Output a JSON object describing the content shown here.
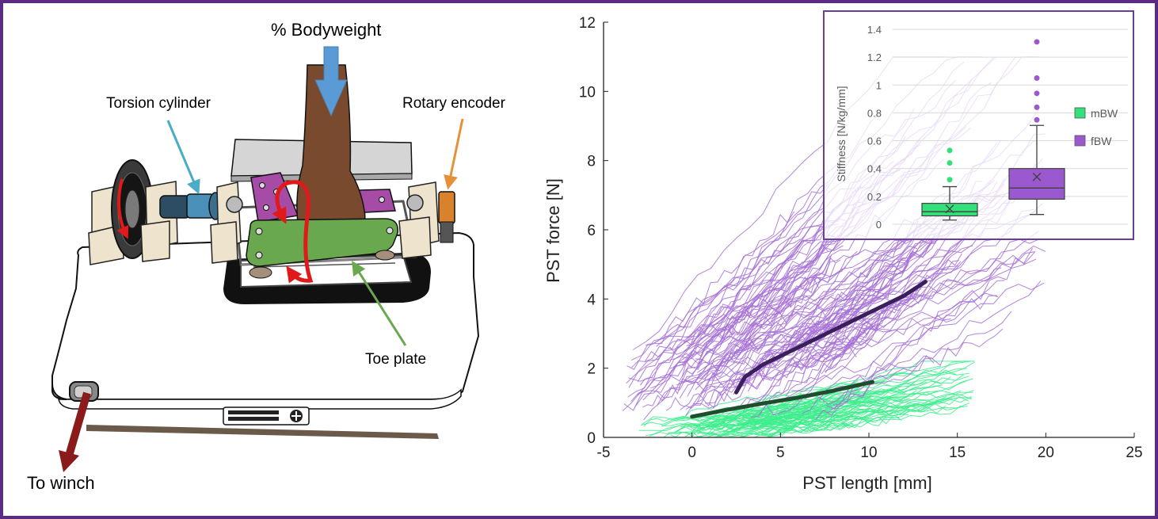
{
  "apparatus": {
    "labels": {
      "bodyweight": "% Bodyweight",
      "torsion_cylinder": "Torsion cylinder",
      "rotary_encoder": "Rotary encoder",
      "toe_plate": "Toe plate",
      "to_winch": "To winch"
    },
    "colors": {
      "bodyweight_arrow": "#5b9bd5",
      "torsion_pointer": "#4bacc6",
      "encoder_pointer": "#e69138",
      "toe_pointer": "#6aa84f",
      "winch_arrow": "#a61c1c",
      "rotation_arrow": "#e01a1a",
      "toe_plate": "#6aa84f",
      "clamp_plate": "#a64ca6"
    }
  },
  "chart_data": [
    {
      "type": "line",
      "title": "",
      "xlabel": "PST length [mm]",
      "ylabel": "PST force [N]",
      "xlim": [
        -5,
        25
      ],
      "ylim": [
        0,
        12
      ],
      "xticks": [
        -5,
        0,
        5,
        10,
        15,
        20,
        25
      ],
      "yticks": [
        0,
        2,
        4,
        6,
        8,
        10,
        12
      ],
      "grid": false,
      "series": [
        {
          "group": "mBW",
          "kind": "individual traces",
          "color": "#3ded8c",
          "approx_count": 80,
          "x_range": [
            -3,
            16
          ],
          "y_range": [
            0,
            2.2
          ]
        },
        {
          "group": "fBW",
          "kind": "individual traces",
          "color": "#a46fd6",
          "approx_count": 120,
          "x_range": [
            -4,
            20
          ],
          "y_range": [
            0.6,
            11
          ]
        },
        {
          "group": "mBW",
          "kind": "mean curve",
          "color": "#1f4d2e",
          "x": [
            0,
            2,
            4,
            6,
            8,
            10.2
          ],
          "y": [
            0.6,
            0.8,
            0.98,
            1.15,
            1.35,
            1.6
          ]
        },
        {
          "group": "fBW",
          "kind": "mean curve",
          "color": "#3b1f5c",
          "x": [
            2.5,
            3,
            4,
            6,
            8,
            10,
            12,
            13.2
          ],
          "y": [
            1.3,
            1.75,
            2.1,
            2.6,
            3.1,
            3.6,
            4.1,
            4.5
          ]
        }
      ]
    },
    {
      "type": "box",
      "title": "",
      "ylabel": "Stiffness [N/kg/mm]",
      "ylim": [
        0,
        1.4
      ],
      "yticks": [
        "0",
        "0.2",
        "0.4",
        "0.6",
        "0.8",
        "1",
        "1.2",
        "1.4"
      ],
      "grid": true,
      "legend_position": "right",
      "series": [
        {
          "name": "mBW",
          "color": "#33e07a",
          "whisker_low": 0.03,
          "q1": 0.06,
          "median": 0.09,
          "q3": 0.15,
          "whisker_high": 0.27,
          "mean": 0.11,
          "outliers": [
            0.32,
            0.44,
            0.53
          ]
        },
        {
          "name": "fBW",
          "color": "#9b59d0",
          "whisker_low": 0.07,
          "q1": 0.18,
          "median": 0.26,
          "q3": 0.4,
          "whisker_high": 0.71,
          "mean": 0.34,
          "outliers": [
            0.75,
            0.84,
            0.94,
            1.05,
            1.31
          ]
        }
      ]
    }
  ]
}
